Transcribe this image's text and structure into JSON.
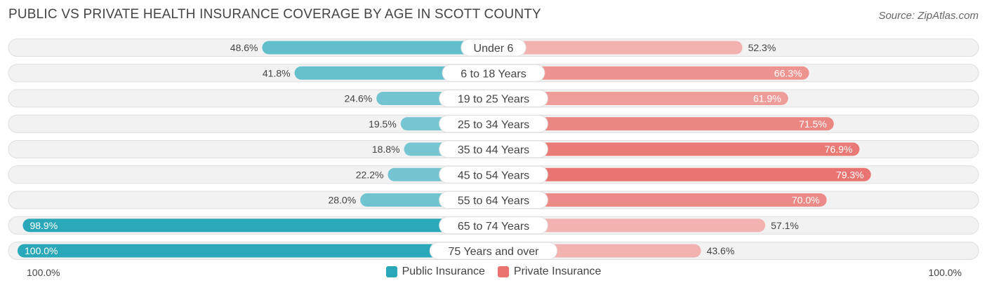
{
  "title": "PUBLIC VS PRIVATE HEALTH INSURANCE COVERAGE BY AGE IN SCOTT COUNTY",
  "source": "Source: ZipAtlas.com",
  "colors": {
    "public": "#2aa7b8",
    "public_light": "#7ecbd3",
    "private": "#e8736f",
    "private_light": "#f2b3b0"
  },
  "legend": {
    "public_label": "Public Insurance",
    "private_label": "Private Insurance"
  },
  "axis": {
    "left_label": "100.0%",
    "right_label": "100.0%"
  },
  "chart_data": {
    "type": "bar",
    "orientation": "horizontal-diverging",
    "title": "PUBLIC VS PRIVATE HEALTH INSURANCE COVERAGE BY AGE IN SCOTT COUNTY",
    "categories": [
      "Under 6",
      "6 to 18 Years",
      "19 to 25 Years",
      "25 to 34 Years",
      "35 to 44 Years",
      "45 to 54 Years",
      "55 to 64 Years",
      "65 to 74 Years",
      "75 Years and over"
    ],
    "series": [
      {
        "name": "Public Insurance",
        "values": [
          48.6,
          41.8,
          24.6,
          19.5,
          18.8,
          22.2,
          28.0,
          98.9,
          100.0
        ],
        "labels": [
          "48.6%",
          "41.8%",
          "24.6%",
          "19.5%",
          "18.8%",
          "22.2%",
          "28.0%",
          "98.9%",
          "100.0%"
        ]
      },
      {
        "name": "Private Insurance",
        "values": [
          52.3,
          66.3,
          61.9,
          71.5,
          76.9,
          79.3,
          70.0,
          57.1,
          43.6
        ],
        "labels": [
          "52.3%",
          "66.3%",
          "61.9%",
          "71.5%",
          "76.9%",
          "79.3%",
          "70.0%",
          "57.1%",
          "43.6%"
        ]
      }
    ],
    "xlim": [
      0,
      100
    ],
    "legend_position": "bottom-center"
  }
}
